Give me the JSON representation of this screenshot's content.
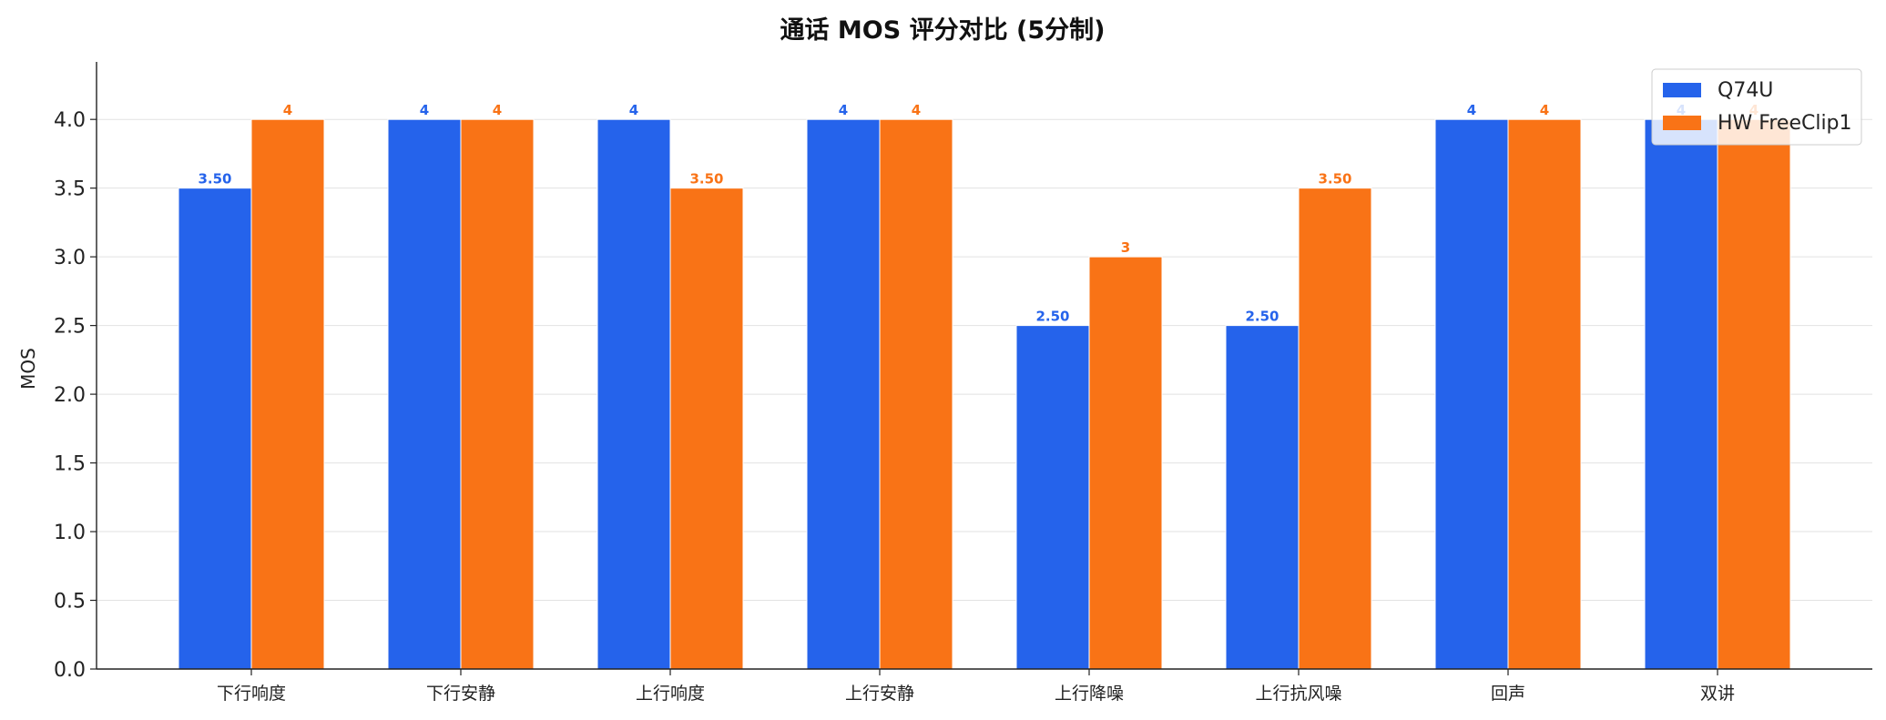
{
  "chart_data": {
    "type": "bar",
    "title": "通话 MOS 评分对比 (5分制)",
    "xlabel": "",
    "ylabel": "MOS",
    "categories": [
      "下行响度",
      "下行安静",
      "上行响度",
      "上行安静",
      "上行降噪",
      "上行抗风噪",
      "回声",
      "双讲"
    ],
    "series": [
      {
        "name": "Q74U",
        "color": "#2563EB",
        "values": [
          3.5,
          4,
          4,
          4,
          2.5,
          2.5,
          4,
          4
        ],
        "labels": [
          "3.50",
          "4",
          "4",
          "4",
          "2.50",
          "2.50",
          "4",
          "4"
        ]
      },
      {
        "name": "HW FreeClip1",
        "color": "#F97316",
        "values": [
          4,
          4,
          3.5,
          4,
          3,
          3.5,
          4,
          4
        ],
        "labels": [
          "4",
          "4",
          "3.50",
          "4",
          "3",
          "3.50",
          "4",
          "4"
        ]
      }
    ],
    "ylim": [
      0,
      4.2
    ],
    "yticks": [
      "0.0",
      "0.5",
      "1.0",
      "1.5",
      "2.0",
      "2.5",
      "3.0",
      "3.5",
      "4.0"
    ],
    "grid": "horizontal",
    "legend": "top-right"
  }
}
